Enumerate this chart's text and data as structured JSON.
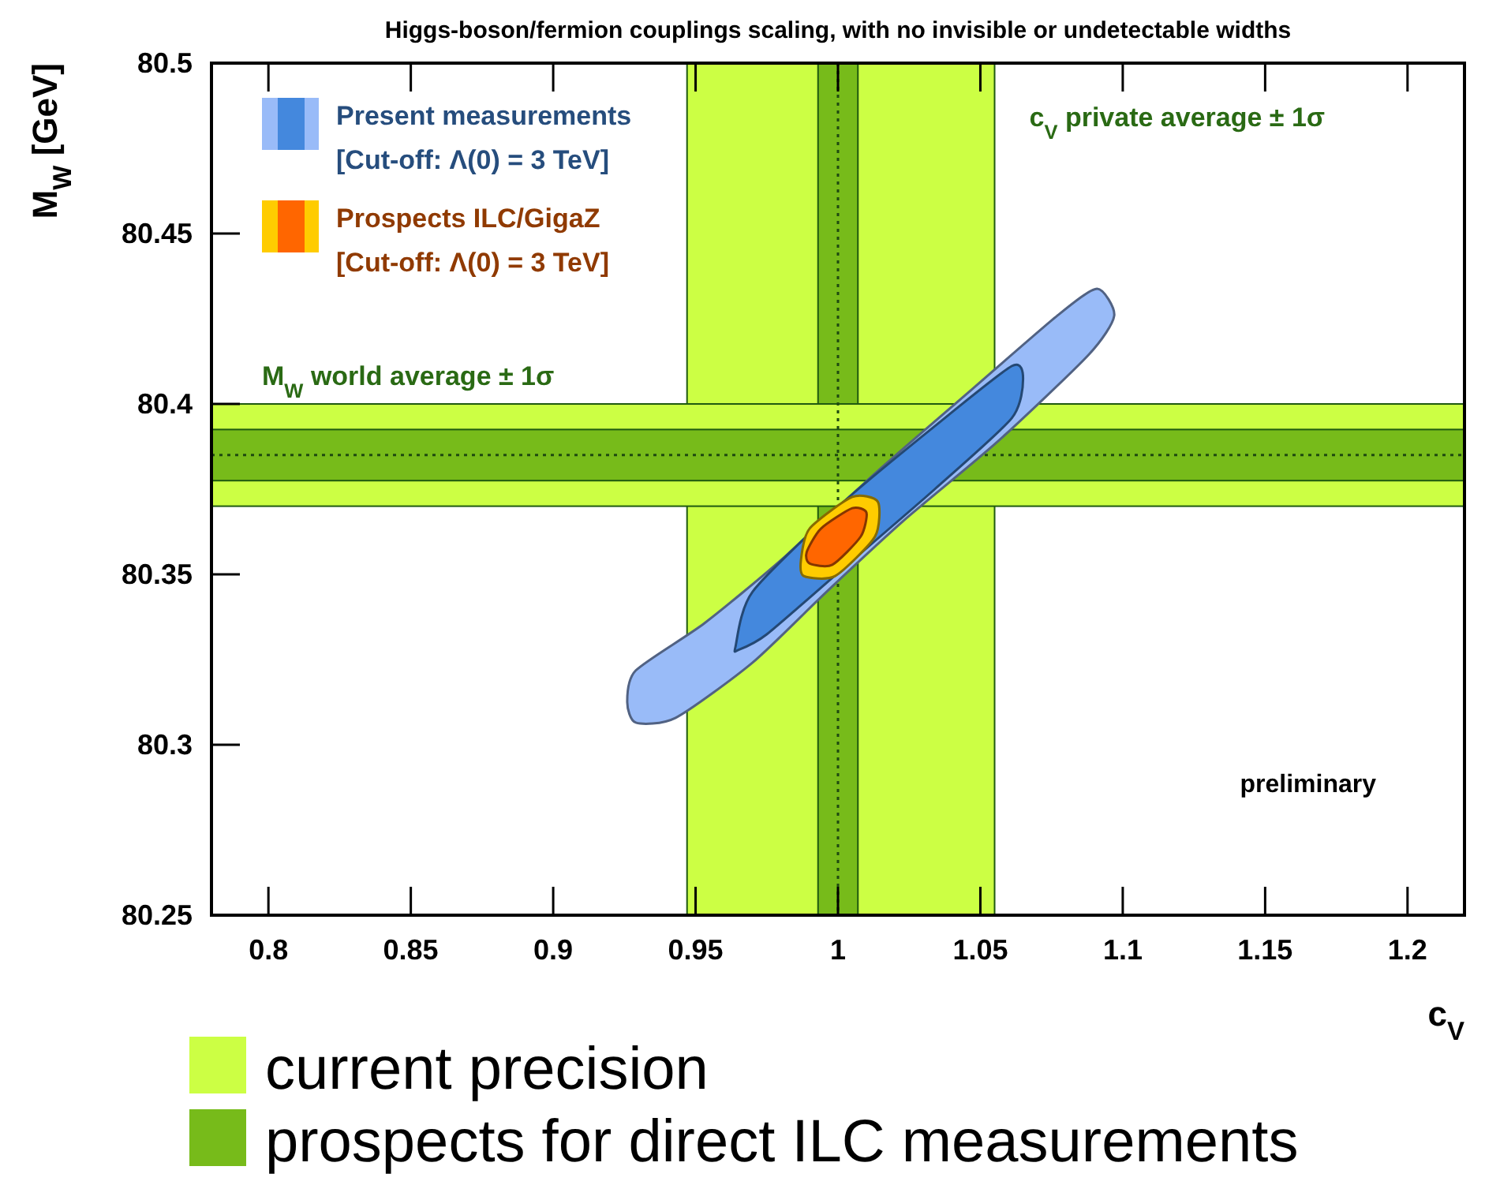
{
  "chart_data": {
    "type": "area",
    "title": "Higgs-boson/fermion couplings scaling, with no invisible or undetectable widths",
    "xlabel": "c$_{V}$",
    "ylabel": "M$_{W}$ [GeV]",
    "xlim": [
      0.78,
      1.22
    ],
    "xticks": [
      0.8,
      0.85,
      0.9,
      0.95,
      1,
      1.05,
      1.1,
      1.15,
      1.2
    ],
    "ylim": [
      80.25,
      80.5
    ],
    "yticks": [
      80.25,
      80.3,
      80.35,
      80.4,
      80.45,
      80.5
    ],
    "legend": "top left",
    "bands": [
      {
        "axis": "x",
        "from": 0.947,
        "to": 1.055,
        "label": "c$_{V}$ private average ± 1σ",
        "color": "#ccff44"
      },
      {
        "axis": "x",
        "from": 0.993,
        "to": 1.007,
        "color": "#77bb1a"
      },
      {
        "axis": "y",
        "from": 80.37,
        "to": 80.4,
        "label": "M$_{W}$ world average ± 1σ",
        "color": "#ccff44"
      },
      {
        "axis": "y",
        "from": 80.3775,
        "to": 80.3925,
        "color": "#77bb1a"
      }
    ],
    "ref_lines": [
      {
        "axis": "x",
        "value": 1,
        "line_style": "dotted"
      },
      {
        "axis": "y",
        "value": 80.385,
        "line_style": "dotted"
      }
    ],
    "series": [
      {
        "name": "Present measurements\n[Cut-off: Λ(0) = 3 TeV]",
        "color": "#99bbf8",
        "x": [
          0.926,
          0.929,
          0.953,
          0.98,
          1.013,
          1.045,
          1.077,
          1.091,
          1.097,
          1.088,
          1.056,
          1.023,
          0.996,
          0.97,
          0.943,
          0.929
        ],
        "values": [
          80.3125,
          80.3218,
          80.3356,
          80.3542,
          80.3796,
          80.4028,
          80.4259,
          80.4338,
          80.4259,
          80.4144,
          80.3889,
          80.3657,
          80.3449,
          80.3241,
          80.3079,
          80.3065
        ]
      },
      {
        "color": "#4488dd",
        "x": [
          0.964,
          0.97,
          1.002,
          1.034,
          1.061,
          1.065,
          1.061,
          1.034,
          1.002,
          0.975,
          0.965
        ],
        "values": [
          80.3287,
          80.3449,
          80.3713,
          80.3935,
          80.4111,
          80.4074,
          80.3958,
          80.375,
          80.3519,
          80.3324,
          80.3278
        ]
      },
      {
        "name": "Prospects ILC/GigaZ\n[Cut-off: Λ(0) = 3 TeV]",
        "color": "#ffcc00",
        "x": [
          0.987,
          0.99,
          1.005,
          1.014,
          1.013,
          0.999,
          0.988
        ],
        "values": [
          80.3542,
          80.3634,
          80.3727,
          80.3713,
          80.3611,
          80.3495,
          80.3495
        ]
      },
      {
        "color": "#ff6600",
        "x": [
          0.989,
          0.994,
          1.005,
          1.01,
          1.008,
          0.998,
          0.99
        ],
        "values": [
          80.3565,
          80.3634,
          80.3694,
          80.3681,
          80.3611,
          80.3528,
          80.3532
        ]
      }
    ],
    "annotations": [
      "preliminary",
      "current precision",
      "prospects for direct ILC measurements"
    ]
  }
}
